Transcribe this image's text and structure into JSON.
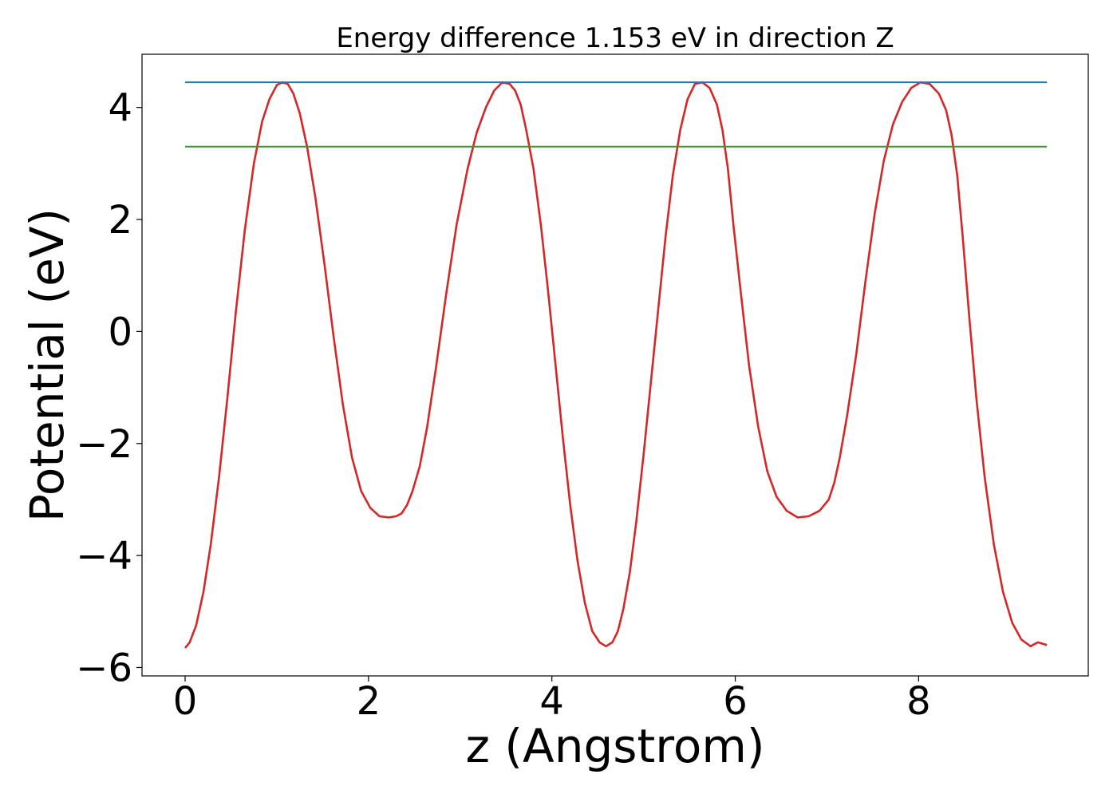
{
  "chart_data": {
    "type": "line",
    "title": "Energy difference 1.153 eV in direction Z",
    "xlabel": "z (Angstrom)",
    "ylabel": "Potential (eV)",
    "xlim": [
      -0.47,
      9.85
    ],
    "ylim": [
      -6.15,
      4.95
    ],
    "xticks": [
      0,
      2,
      4,
      6,
      8
    ],
    "xtick_labels": [
      "0",
      "2",
      "4",
      "6",
      "8"
    ],
    "yticks": [
      -6,
      -4,
      -2,
      0,
      2,
      4
    ],
    "ytick_labels": [
      "−6",
      "−4",
      "−2",
      "0",
      "2",
      "4"
    ],
    "grid": false,
    "legend": null,
    "series": [
      {
        "color": "#d62728",
        "x": [
          0.0,
          0.05,
          0.12,
          0.2,
          0.28,
          0.37,
          0.46,
          0.55,
          0.65,
          0.75,
          0.84,
          0.92,
          1.0,
          1.06,
          1.12,
          1.18,
          1.25,
          1.33,
          1.42,
          1.52,
          1.62,
          1.72,
          1.82,
          1.92,
          2.02,
          2.12,
          2.22,
          2.3,
          2.36,
          2.42,
          2.48,
          2.56,
          2.64,
          2.74,
          2.85,
          2.96,
          3.08,
          3.18,
          3.28,
          3.37,
          3.46,
          3.54,
          3.6,
          3.66,
          3.72,
          3.8,
          3.88,
          3.96,
          4.04,
          4.12,
          4.2,
          4.28,
          4.36,
          4.44,
          4.52,
          4.59,
          4.66,
          4.72,
          4.78,
          4.85,
          4.92,
          5.0,
          5.08,
          5.16,
          5.24,
          5.32,
          5.4,
          5.48,
          5.56,
          5.64,
          5.72,
          5.8,
          5.86,
          5.92,
          5.98,
          6.06,
          6.15,
          6.25,
          6.35,
          6.45,
          6.56,
          6.68,
          6.8,
          6.92,
          7.02,
          7.08,
          7.14,
          7.22,
          7.32,
          7.42,
          7.52,
          7.62,
          7.72,
          7.82,
          7.92,
          8.02,
          8.12,
          8.22,
          8.3,
          8.36,
          8.42,
          8.48,
          8.55,
          8.63,
          8.72,
          8.82,
          8.92,
          9.02,
          9.12,
          9.22,
          9.3,
          9.4
        ],
        "y": [
          -5.65,
          -5.55,
          -5.25,
          -4.65,
          -3.8,
          -2.6,
          -1.2,
          0.3,
          1.8,
          3.0,
          3.75,
          4.15,
          4.4,
          4.45,
          4.42,
          4.25,
          3.9,
          3.3,
          2.4,
          1.2,
          -0.1,
          -1.3,
          -2.25,
          -2.85,
          -3.15,
          -3.3,
          -3.32,
          -3.3,
          -3.25,
          -3.1,
          -2.85,
          -2.4,
          -1.7,
          -0.6,
          0.7,
          1.9,
          2.9,
          3.55,
          4.0,
          4.3,
          4.45,
          4.42,
          4.3,
          4.05,
          3.6,
          2.9,
          1.9,
          0.7,
          -0.6,
          -1.9,
          -3.1,
          -4.1,
          -4.85,
          -5.35,
          -5.55,
          -5.62,
          -5.55,
          -5.35,
          -4.95,
          -4.3,
          -3.4,
          -2.2,
          -0.9,
          0.4,
          1.7,
          2.8,
          3.6,
          4.15,
          4.42,
          4.45,
          4.35,
          4.05,
          3.6,
          2.9,
          1.9,
          0.7,
          -0.6,
          -1.7,
          -2.5,
          -2.95,
          -3.2,
          -3.32,
          -3.3,
          -3.2,
          -3.0,
          -2.7,
          -2.25,
          -1.5,
          -0.4,
          0.9,
          2.1,
          3.05,
          3.7,
          4.1,
          4.35,
          4.45,
          4.42,
          4.25,
          3.95,
          3.5,
          2.8,
          1.7,
          0.3,
          -1.2,
          -2.6,
          -3.8,
          -4.65,
          -5.2,
          -5.5,
          -5.62,
          -5.55,
          -5.6
        ]
      },
      {
        "color": "#1f77b4",
        "x": [
          0.0,
          9.4
        ],
        "y": [
          4.45,
          4.45
        ]
      },
      {
        "color": "#2ca02c",
        "x": [
          0.0,
          9.4
        ],
        "y": [
          3.3,
          3.3
        ]
      }
    ]
  }
}
